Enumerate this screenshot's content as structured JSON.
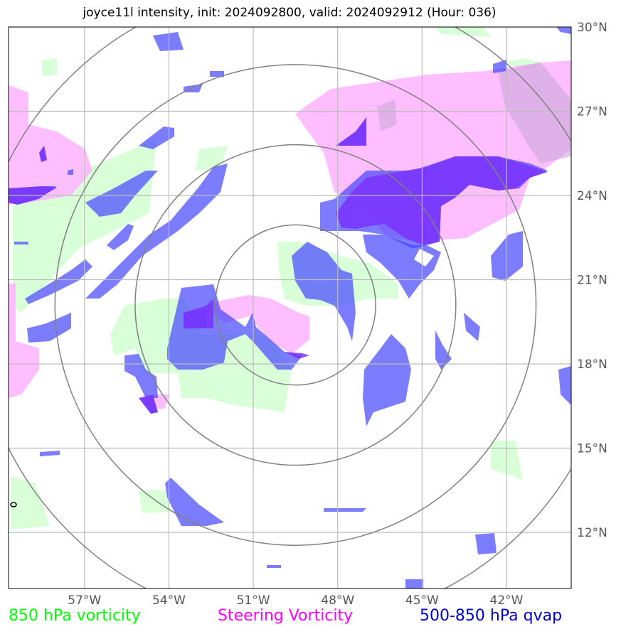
{
  "title": "joyce11l intensity, init: 2024092800, valid: 2024092912 (Hour: 036)",
  "map": {
    "lon_range": [
      -59.7,
      -39.7
    ],
    "lat_range": [
      10.0,
      30.0
    ],
    "lon_ticks": [
      {
        "value": -57,
        "label": "57°W"
      },
      {
        "value": -54,
        "label": "54°W"
      },
      {
        "value": -51,
        "label": "51°W"
      },
      {
        "value": -48,
        "label": "48°W"
      },
      {
        "value": -45,
        "label": "45°W"
      },
      {
        "value": -42,
        "label": "42°W"
      }
    ],
    "lat_ticks": [
      {
        "value": 30,
        "label": "30°N"
      },
      {
        "value": 27,
        "label": "27°N"
      },
      {
        "value": 24,
        "label": "24°N"
      },
      {
        "value": 21,
        "label": "21°N"
      },
      {
        "value": 18,
        "label": "18°N"
      },
      {
        "value": 15,
        "label": "15°N"
      },
      {
        "value": 12,
        "label": "12°N"
      }
    ],
    "center": {
      "lon": -49.5,
      "lat": 20.1
    },
    "range_rings_deg": [
      2.85,
      5.7,
      8.55,
      11.4
    ],
    "colors": {
      "grid": "#bbbbbb",
      "rings": "#808080",
      "vort850": "#ccffcc",
      "steering": "#ff99ff",
      "qvap": "#3333ff"
    }
  },
  "legend": {
    "vort850": {
      "label": "850 hPa vorticity",
      "color": "#00ff00"
    },
    "steering": {
      "label": "Steering Vorticity",
      "color": "#ff00ff"
    },
    "qvap": {
      "label": "500-850 hPa qvap",
      "color": "#0000cc"
    }
  }
}
